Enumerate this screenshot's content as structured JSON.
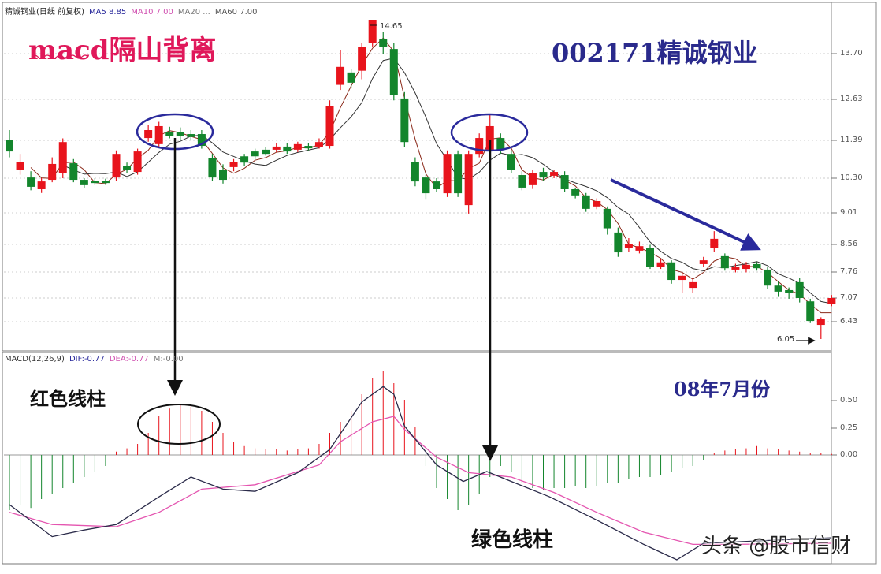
{
  "header": {
    "main": [
      "精诚钢业(日线 前复权)",
      "MA5 8.85",
      "MA10 7.00",
      "MA20 ...",
      "MA60 7.00"
    ],
    "macd": [
      "MACD(12,26,9)",
      "DIF:-0.77",
      "DEA:-0.77",
      "M:-0.00"
    ]
  },
  "annotations": {
    "title": "macd隔山背离",
    "stock": "002171精诚钢业",
    "month": "08年7月份",
    "red_bars": "红色线柱",
    "green_bars": "绿色线柱",
    "watermark": "头条 @股市信财"
  },
  "colors": {
    "up": "#e8141c",
    "down": "#13852c",
    "ma_short": "#8b2a1a",
    "ma_long": "#333333",
    "dif": "#2b2b4a",
    "dea": "#e455b0",
    "annotation_blue": "#2a2a9c"
  },
  "chart_data": [
    {
      "type": "candlestick",
      "title": "",
      "yticks": [
        "13.70",
        "12.63",
        "11.39",
        "10.30",
        "9.01",
        "8.56",
        "7.76",
        "7.07",
        "6.43"
      ],
      "high_label": "14.65",
      "low_label": "6.05",
      "candles_ohlc_note_order": "open,close,high,low",
      "candles": [
        [
          11.39,
          11.07,
          11.7,
          10.9
        ],
        [
          10.55,
          10.77,
          11.0,
          10.4
        ],
        [
          10.32,
          9.98,
          10.5,
          9.85
        ],
        [
          9.89,
          10.18,
          10.3,
          9.75
        ],
        [
          10.24,
          10.71,
          10.9,
          10.15
        ],
        [
          10.44,
          11.34,
          11.45,
          10.3
        ],
        [
          10.73,
          10.24,
          10.85,
          10.15
        ],
        [
          10.24,
          10.04,
          10.3,
          9.95
        ],
        [
          10.21,
          10.12,
          10.3,
          10.05
        ],
        [
          10.2,
          10.12,
          10.28,
          10.05
        ],
        [
          10.32,
          11.0,
          11.1,
          10.2
        ],
        [
          10.66,
          10.55,
          10.75,
          10.45
        ],
        [
          10.48,
          11.07,
          11.15,
          10.4
        ],
        [
          11.46,
          11.7,
          11.85,
          11.35
        ],
        [
          11.28,
          11.82,
          11.95,
          11.2
        ],
        [
          11.63,
          11.53,
          11.8,
          11.45
        ],
        [
          11.63,
          11.51,
          11.78,
          11.4
        ],
        [
          11.58,
          11.49,
          11.7,
          11.4
        ],
        [
          11.58,
          11.23,
          11.7,
          11.15
        ],
        [
          10.89,
          10.32,
          11.0,
          10.2
        ],
        [
          10.55,
          10.24,
          10.7,
          10.1
        ],
        [
          10.62,
          10.77,
          10.85,
          10.5
        ],
        [
          10.93,
          10.75,
          11.0,
          10.65
        ],
        [
          11.07,
          10.93,
          11.15,
          10.85
        ],
        [
          11.12,
          11.0,
          11.2,
          10.95
        ],
        [
          11.12,
          11.21,
          11.3,
          11.05
        ],
        [
          11.21,
          11.07,
          11.3,
          11.0
        ],
        [
          11.12,
          11.28,
          11.35,
          11.05
        ],
        [
          11.23,
          11.16,
          11.3,
          11.1
        ],
        [
          11.21,
          11.34,
          11.45,
          11.15
        ],
        [
          11.23,
          12.42,
          12.6,
          11.15
        ],
        [
          12.97,
          13.39,
          13.8,
          12.85
        ],
        [
          13.26,
          13.02,
          13.35,
          12.9
        ],
        [
          13.3,
          13.88,
          14.0,
          13.1
        ],
        [
          13.99,
          14.65,
          14.65,
          13.9
        ],
        [
          14.1,
          13.88,
          14.3,
          13.7
        ],
        [
          13.83,
          12.74,
          14.0,
          12.6
        ],
        [
          12.65,
          11.34,
          12.8,
          11.2
        ],
        [
          10.77,
          10.18,
          10.9,
          10.0
        ],
        [
          10.32,
          9.74,
          10.4,
          9.5
        ],
        [
          10.18,
          9.89,
          10.3,
          9.8
        ],
        [
          9.74,
          11.0,
          11.1,
          9.6
        ],
        [
          11.0,
          9.74,
          11.1,
          9.6
        ],
        [
          9.3,
          11.0,
          11.1,
          9.0
        ],
        [
          11.0,
          11.46,
          11.6,
          10.9
        ],
        [
          11.12,
          11.82,
          12.2,
          11.0
        ],
        [
          11.46,
          11.12,
          11.6,
          11.0
        ],
        [
          11.0,
          10.55,
          11.1,
          10.45
        ],
        [
          10.39,
          9.95,
          10.5,
          9.85
        ],
        [
          10.04,
          10.44,
          10.55,
          9.9
        ],
        [
          10.48,
          10.32,
          10.6,
          10.2
        ],
        [
          10.37,
          10.48,
          10.55,
          10.3
        ],
        [
          10.39,
          9.89,
          10.5,
          9.8
        ],
        [
          9.89,
          9.66,
          9.95,
          9.55
        ],
        [
          9.66,
          9.16,
          9.75,
          9.05
        ],
        [
          9.25,
          9.45,
          9.55,
          9.15
        ],
        [
          9.16,
          8.79,
          9.25,
          8.7
        ],
        [
          8.73,
          8.33,
          8.8,
          8.2
        ],
        [
          8.45,
          8.56,
          8.65,
          8.35
        ],
        [
          8.38,
          8.51,
          8.6,
          8.3
        ],
        [
          8.45,
          7.92,
          8.55,
          7.85
        ],
        [
          7.92,
          8.04,
          8.15,
          7.85
        ],
        [
          8.04,
          7.55,
          8.1,
          7.45
        ],
        [
          7.55,
          7.66,
          7.75,
          7.2
        ],
        [
          7.34,
          7.49,
          7.6,
          7.2
        ],
        [
          7.99,
          8.1,
          8.2,
          7.9
        ],
        [
          8.45,
          8.64,
          8.75,
          8.35
        ],
        [
          8.22,
          7.87,
          8.3,
          7.8
        ],
        [
          7.83,
          7.92,
          8.0,
          7.75
        ],
        [
          7.85,
          7.97,
          8.05,
          7.75
        ],
        [
          7.99,
          7.87,
          8.05,
          7.8
        ],
        [
          7.83,
          7.4,
          7.9,
          7.3
        ],
        [
          7.4,
          7.24,
          7.5,
          7.1
        ],
        [
          7.28,
          7.2,
          7.35,
          7.05
        ],
        [
          7.49,
          7.07,
          7.6,
          6.95
        ],
        [
          6.98,
          6.45,
          7.05,
          6.4
        ],
        [
          6.36,
          6.5,
          6.55,
          6.05
        ],
        [
          6.92,
          7.07,
          7.15,
          6.85
        ]
      ]
    },
    {
      "type": "bar+line",
      "title": "",
      "yticks": [
        "0.50",
        "0.25",
        "0.00"
      ],
      "histogram": [
        -0.5,
        -0.45,
        -0.48,
        -0.4,
        -0.35,
        -0.3,
        -0.25,
        -0.2,
        -0.15,
        -0.1,
        0.03,
        0.06,
        0.1,
        0.2,
        0.35,
        0.42,
        0.45,
        0.44,
        0.4,
        0.3,
        0.2,
        0.12,
        0.08,
        0.06,
        0.05,
        0.05,
        0.04,
        0.05,
        0.06,
        0.1,
        0.2,
        0.3,
        0.4,
        0.55,
        0.7,
        0.76,
        0.65,
        0.5,
        0.25,
        -0.1,
        -0.3,
        -0.4,
        -0.5,
        -0.45,
        -0.35,
        -0.2,
        -0.1,
        -0.15,
        -0.25,
        -0.3,
        -0.32,
        -0.3,
        -0.3,
        -0.28,
        -0.3,
        -0.28,
        -0.25,
        -0.25,
        -0.22,
        -0.2,
        -0.2,
        -0.18,
        -0.15,
        -0.12,
        -0.1,
        -0.05,
        0.02,
        0.04,
        0.05,
        0.06,
        0.08,
        0.06,
        0.05,
        0.04,
        0.03,
        0.02,
        0.02,
        0.01
      ],
      "dif": [
        [
          0,
          -0.45
        ],
        [
          4,
          -0.74
        ],
        [
          7,
          -0.68
        ],
        [
          10,
          -0.63
        ],
        [
          14,
          -0.38
        ],
        [
          17,
          -0.2
        ],
        [
          20,
          -0.31
        ],
        [
          23,
          -0.33
        ],
        [
          27,
          -0.16
        ],
        [
          30,
          0.05
        ],
        [
          33,
          0.48
        ],
        [
          35,
          0.62
        ],
        [
          36,
          0.55
        ],
        [
          37,
          0.26
        ],
        [
          40,
          -0.09
        ],
        [
          42.5,
          -0.24
        ],
        [
          44.7,
          -0.15
        ],
        [
          47,
          -0.24
        ],
        [
          50.6,
          -0.38
        ],
        [
          55,
          -0.59
        ],
        [
          59.4,
          -0.81
        ],
        [
          62.5,
          -0.95
        ],
        [
          65,
          -0.8
        ],
        [
          77,
          -0.75
        ]
      ],
      "dea": [
        [
          0,
          -0.52
        ],
        [
          4,
          -0.63
        ],
        [
          10,
          -0.65
        ],
        [
          14,
          -0.52
        ],
        [
          18,
          -0.31
        ],
        [
          23,
          -0.27
        ],
        [
          29,
          -0.09
        ],
        [
          31,
          0.12
        ],
        [
          34,
          0.3
        ],
        [
          36,
          0.35
        ],
        [
          37,
          0.23
        ],
        [
          40,
          -0.02
        ],
        [
          43,
          -0.16
        ],
        [
          47,
          -0.2
        ],
        [
          51,
          -0.34
        ],
        [
          55,
          -0.52
        ],
        [
          59.4,
          -0.7
        ],
        [
          64,
          -0.81
        ],
        [
          68,
          -0.81
        ],
        [
          77,
          -0.8
        ]
      ]
    }
  ]
}
